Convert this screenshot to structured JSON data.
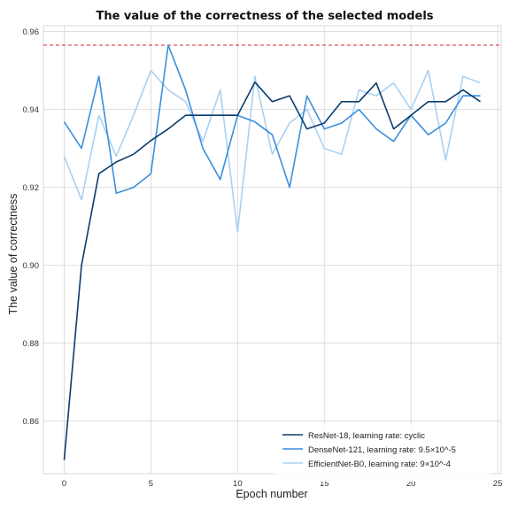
{
  "chart_data": {
    "type": "line",
    "title": "The value of the correctness of the selected models",
    "xlabel": "Epoch number",
    "ylabel": "The value of correctness",
    "xlim": [
      -1.2,
      25.2
    ],
    "ylim": [
      0.8465,
      0.9615
    ],
    "xticks": [
      0,
      5,
      10,
      15,
      20,
      25
    ],
    "yticks": [
      0.86,
      0.88,
      0.9,
      0.92,
      0.94,
      0.96
    ],
    "ytick_labels": [
      "0.86",
      "0.88",
      "0.90",
      "0.92",
      "0.94",
      "0.96"
    ],
    "grid": true,
    "legend_position": "lower-right",
    "reference_line": {
      "y": 0.9565,
      "color": "#d62728",
      "style": "dashed"
    },
    "x": [
      0,
      1,
      2,
      3,
      4,
      5,
      6,
      7,
      8,
      9,
      10,
      11,
      12,
      13,
      14,
      15,
      16,
      17,
      18,
      19,
      20,
      21,
      22,
      23,
      24
    ],
    "series": [
      {
        "name": "ResNet-18, learning rate: cyclic",
        "color": "#0b3c6e",
        "values": [
          0.85,
          0.9,
          0.9235,
          0.9265,
          0.9285,
          0.932,
          0.935,
          0.9385,
          0.9385,
          0.9385,
          0.9385,
          0.947,
          0.942,
          0.9435,
          0.935,
          0.9365,
          0.942,
          0.942,
          0.9468,
          0.935,
          0.9385,
          0.942,
          0.942,
          0.945,
          0.942
        ]
      },
      {
        "name": "DenseNet-121, learning rate: 9.5×10^-5",
        "color": "#3b8fdc",
        "values": [
          0.9368,
          0.93,
          0.9485,
          0.9185,
          0.92,
          0.9235,
          0.9565,
          0.945,
          0.93,
          0.922,
          0.9385,
          0.9368,
          0.9335,
          0.92,
          0.9435,
          0.935,
          0.9365,
          0.94,
          0.935,
          0.9318,
          0.9385,
          0.9335,
          0.9365,
          0.9435,
          0.9435
        ]
      },
      {
        "name": "EfficientNet-B0, learning rate: 9×10^-4",
        "color": "#a9d1f2",
        "values": [
          0.928,
          0.9168,
          0.9385,
          0.928,
          0.9385,
          0.95,
          0.945,
          0.942,
          0.9318,
          0.945,
          0.9085,
          0.9485,
          0.9285,
          0.9365,
          0.94,
          0.93,
          0.9285,
          0.945,
          0.9435,
          0.9468,
          0.94,
          0.95,
          0.927,
          0.9485,
          0.9468
        ]
      }
    ]
  }
}
